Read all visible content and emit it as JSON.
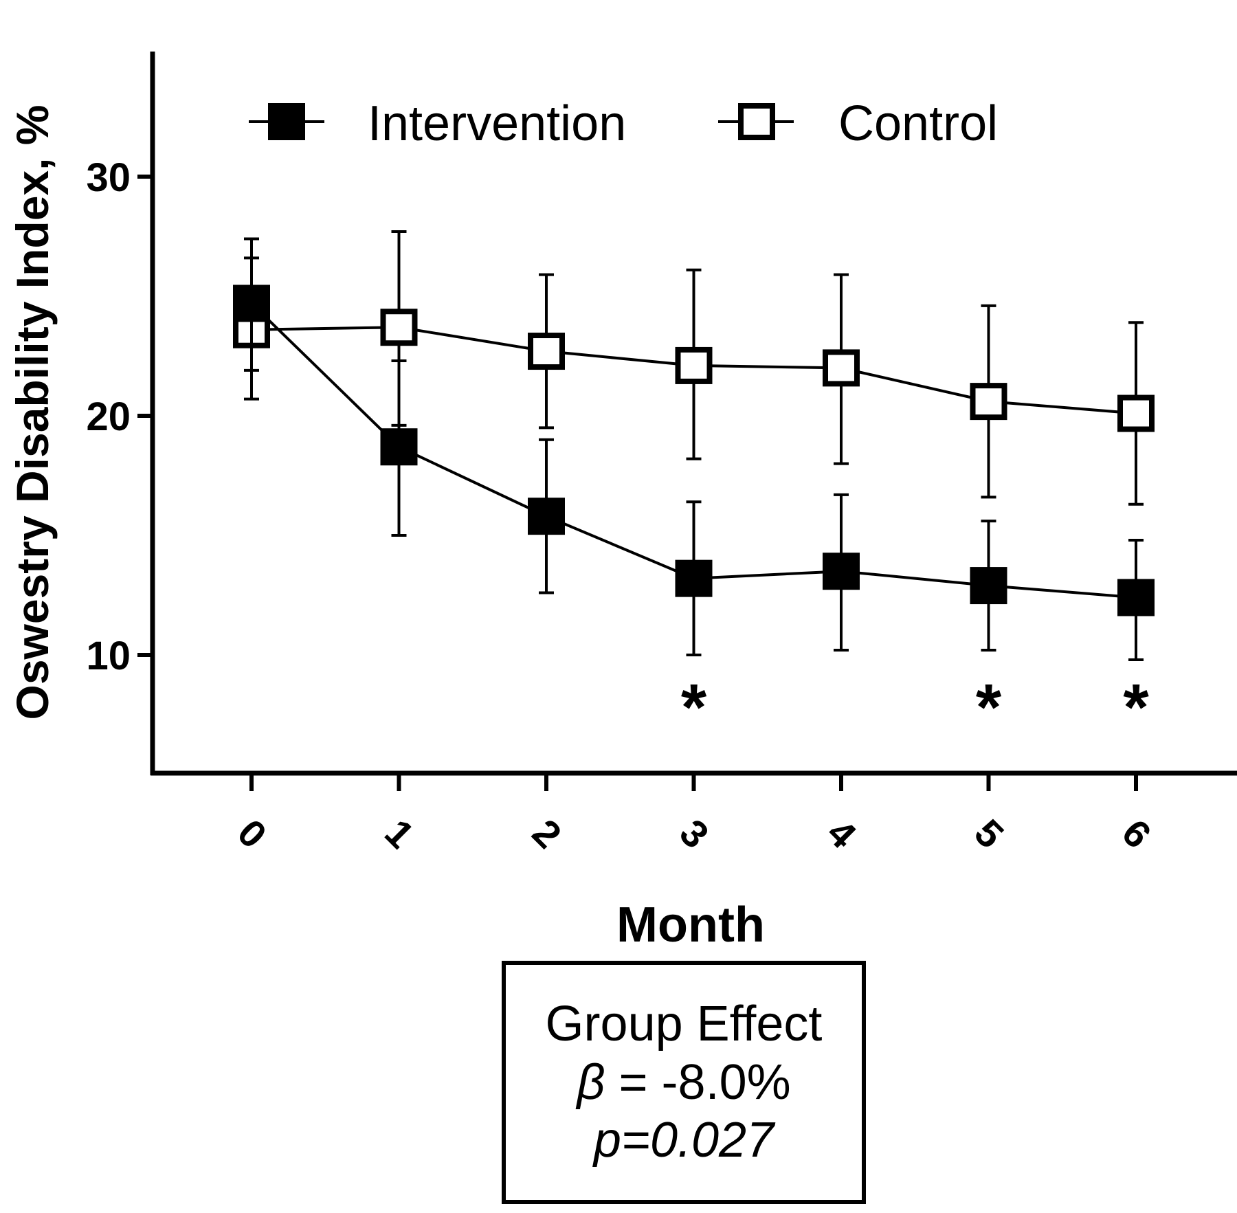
{
  "chart_data": {
    "type": "line",
    "x": [
      0,
      1,
      2,
      3,
      4,
      5,
      6
    ],
    "x_tick_labels": [
      "0",
      "1",
      "2",
      "3",
      "4",
      "5",
      "6"
    ],
    "xlabel": "Month",
    "ylabel": "Oswestry Disability Index, %",
    "ylim": [
      5,
      35
    ],
    "y_ticks": [
      10,
      20,
      30
    ],
    "y_tick_labels": [
      "10",
      "20",
      "30"
    ],
    "legend_position": "top",
    "series": [
      {
        "name": "Intervention",
        "marker": "filled-square",
        "values": [
          24.7,
          18.7,
          15.8,
          13.2,
          13.5,
          12.9,
          12.4
        ],
        "err_upper": [
          26.6,
          22.3,
          19.0,
          16.4,
          16.7,
          15.6,
          14.8
        ],
        "err_lower": [
          21.9,
          15.0,
          12.6,
          10.0,
          10.2,
          10.2,
          9.8
        ]
      },
      {
        "name": "Control",
        "marker": "open-square",
        "values": [
          23.6,
          23.7,
          22.7,
          22.1,
          22.0,
          20.6,
          20.1
        ],
        "err_upper": [
          27.4,
          27.7,
          25.9,
          26.1,
          25.9,
          24.6,
          23.9
        ],
        "err_lower": [
          20.7,
          19.6,
          19.5,
          18.2,
          18.0,
          16.6,
          16.3
        ]
      }
    ],
    "significance_marks": [
      {
        "x": 3,
        "label": "*"
      },
      {
        "x": 5,
        "label": "*"
      },
      {
        "x": 6,
        "label": "*"
      }
    ],
    "colors": {
      "line": "#000000",
      "filled_marker": "#000000",
      "open_marker_fill": "#ffffff"
    }
  },
  "effect_box": {
    "title": "Group Effect",
    "beta_symbol": "β",
    "beta_value": " = -8.0%",
    "p_text": "p=0.027"
  }
}
